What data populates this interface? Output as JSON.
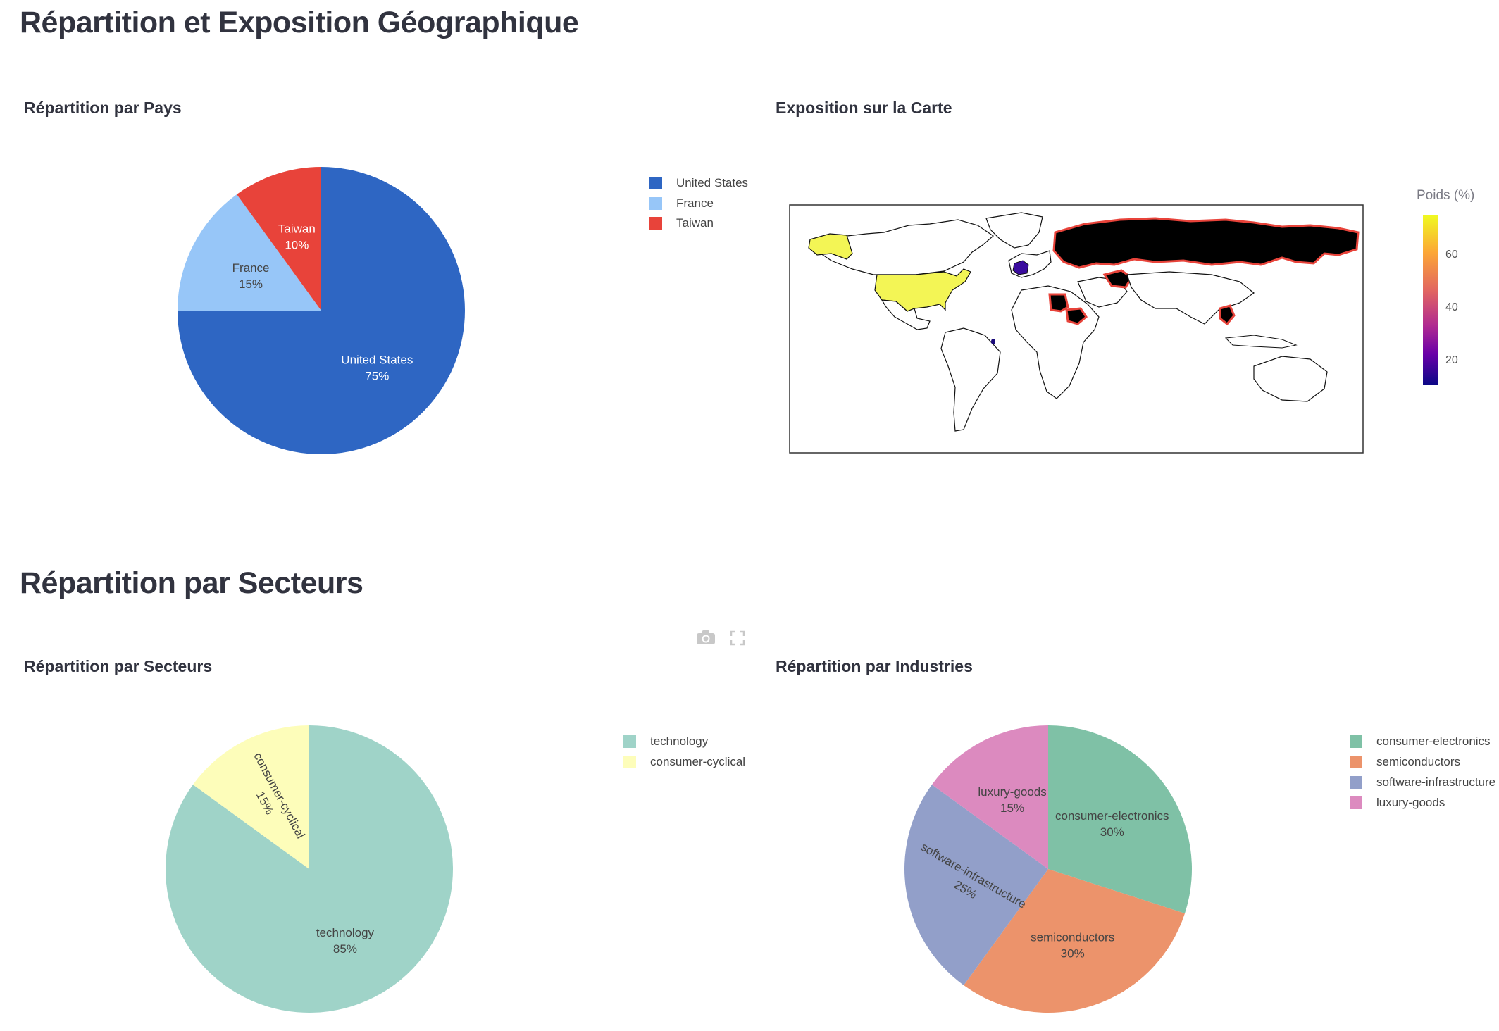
{
  "geo_section": {
    "heading": "Répartition et Exposition Géographique"
  },
  "sector_section": {
    "heading": "Répartition par Secteurs"
  },
  "country_chart": {
    "title": "Répartition par Pays",
    "legend": [
      "United States",
      "France",
      "Taiwan"
    ]
  },
  "map_chart": {
    "title": "Exposition sur la Carte",
    "colorbar_title": "Poids (%)",
    "colorbar_ticks": [
      "60",
      "40",
      "20"
    ]
  },
  "sector_chart": {
    "title": "Répartition par Secteurs",
    "legend": [
      "technology",
      "consumer-cyclical"
    ]
  },
  "industry_chart": {
    "title": "Répartition par Industries",
    "legend": [
      "consumer-electronics",
      "semiconductors",
      "software-infrastructure",
      "luxury-goods"
    ]
  },
  "toolbar": {
    "camera_icon": "camera-icon",
    "fullscreen_icon": "fullscreen-icon"
  },
  "chart_data": [
    {
      "type": "pie",
      "title": "Répartition par Pays",
      "categories": [
        "United States",
        "France",
        "Taiwan"
      ],
      "values": [
        75,
        15,
        10
      ],
      "text_labels": [
        "United States 75%",
        "France 15%",
        "Taiwan 10%"
      ],
      "colors": [
        "#2e66c3",
        "#97c6f8",
        "#e8433a"
      ],
      "legend_position": "top-right"
    },
    {
      "type": "choropleth",
      "title": "Exposition sur la Carte",
      "locations": [
        "United States",
        "France",
        "Taiwan"
      ],
      "values": [
        75,
        15,
        10
      ],
      "colorbar": {
        "title": "Poids (%)",
        "range": [
          10,
          75
        ],
        "ticks": [
          20,
          40,
          60
        ]
      },
      "colors": {
        "United States": "#f3f555",
        "France": "#3a0c9e",
        "Taiwan": "#1a0a7a"
      }
    },
    {
      "type": "pie",
      "title": "Répartition par Secteurs",
      "categories": [
        "technology",
        "consumer-cyclical"
      ],
      "values": [
        85,
        15
      ],
      "text_labels": [
        "technology 85%",
        "consumer-cyclical 15%"
      ],
      "colors": [
        "#9fd3c8",
        "#fdfdba"
      ],
      "legend_position": "top-right"
    },
    {
      "type": "pie",
      "title": "Répartition par Industries",
      "categories": [
        "consumer-electronics",
        "semiconductors",
        "software-infrastructure",
        "luxury-goods"
      ],
      "values": [
        30,
        30,
        25,
        15
      ],
      "text_labels": [
        "consumer-electronics 30%",
        "semiconductors 30%",
        "software-infrastructure 25%",
        "luxury-goods 15%"
      ],
      "colors": [
        "#7fc1a6",
        "#ec936b",
        "#929fc9",
        "#dc8abf"
      ],
      "legend_position": "top-right"
    }
  ]
}
